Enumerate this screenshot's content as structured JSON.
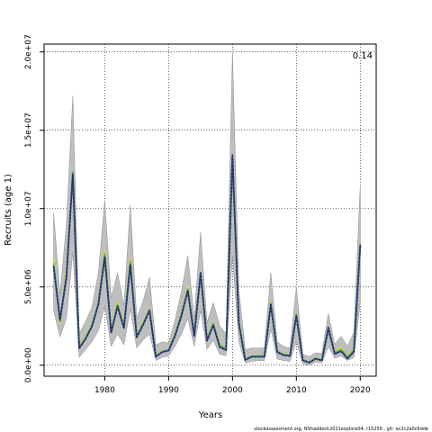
{
  "chart_data": {
    "type": "line",
    "title": "",
    "xlabel": "Years",
    "ylabel": "Recruits (age 1)",
    "corner_label": "0.14",
    "footer": "stockassessment.org, NShaddock2021explore04, r15256 , git: ec2c2a0c6dde",
    "xlim": [
      1970.5,
      2022.5
    ],
    "ylim": [
      -700000,
      20500000
    ],
    "x_ticks": [
      1980,
      1990,
      2000,
      2010,
      2020
    ],
    "x_tick_labels": [
      "1980",
      "1990",
      "2000",
      "2010",
      "2020"
    ],
    "y_ticks": [
      0,
      5000000,
      10000000,
      15000000,
      20000000
    ],
    "y_tick_labels": [
      "0.0e+00",
      "5.0e+06",
      "1.0e+07",
      "1.5e+07",
      "2.0e+07"
    ],
    "grid": true,
    "grid_style": "dotted",
    "x": [
      1972,
      1973,
      1974,
      1975,
      1976,
      1977,
      1978,
      1979,
      1980,
      1981,
      1982,
      1983,
      1984,
      1985,
      1986,
      1987,
      1988,
      1989,
      1990,
      1991,
      1992,
      1993,
      1994,
      1995,
      1996,
      1997,
      1998,
      1999,
      2000,
      2001,
      2002,
      2003,
      2004,
      2005,
      2006,
      2007,
      2008,
      2009,
      2010,
      2011,
      2012,
      2013,
      2014,
      2015,
      2016,
      2017,
      2018,
      2019,
      2020
    ],
    "band_upper": [
      9700000,
      4500000,
      9000000,
      17200000,
      2000000,
      2800000,
      3700000,
      5900000,
      10500000,
      4300000,
      5900000,
      3800000,
      10200000,
      3000000,
      4100000,
      5600000,
      1300000,
      1500000,
      1400000,
      2900000,
      4700000,
      7000000,
      3000000,
      8500000,
      2700000,
      4000000,
      2500000,
      2000000,
      20000000,
      4800000,
      1000000,
      1100000,
      1100000,
      1100000,
      5900000,
      1500000,
      1200000,
      1100000,
      5000000,
      700000,
      550000,
      800000,
      750000,
      3300000,
      1350000,
      1850000,
      1200000,
      2100000,
      11500000
    ],
    "band_lower": [
      3500000,
      1800000,
      3000000,
      7200000,
      500000,
      1000000,
      1500000,
      2200000,
      3800000,
      1200000,
      2000000,
      1300000,
      3600000,
      1100000,
      1600000,
      2000000,
      300000,
      500000,
      600000,
      1200000,
      2000000,
      3000000,
      1200000,
      3500000,
      1000000,
      1600000,
      700000,
      600000,
      7000000,
      1500000,
      150000,
      250000,
      300000,
      300000,
      2300000,
      400000,
      300000,
      250000,
      1500000,
      100000,
      0,
      200000,
      150000,
      1200000,
      450000,
      600000,
      300000,
      500000,
      4000000
    ],
    "series": [
      {
        "color": "#e6e61a",
        "values": [
          6700000,
          2700000,
          6000000,
          12000000,
          1200000,
          1800000,
          2600000,
          4000000,
          7300000,
          2200000,
          4000000,
          2500000,
          6800000,
          1900000,
          2700000,
          3600000,
          600000,
          900000,
          1000000,
          2000000,
          3300000,
          5000000,
          2000000,
          5600000,
          1700000,
          2700000,
          1300000,
          1100000,
          12700000,
          2800000,
          400000,
          600000,
          600000,
          600000,
          4000000,
          900000,
          700000,
          650000,
          3200000,
          350000,
          200000,
          450000,
          350000,
          2200000,
          800000,
          1100000,
          550000,
          1000000,
          7500000
        ]
      },
      {
        "color": "#b5d11f",
        "values": [
          6600000,
          2750000,
          5900000,
          12100000,
          1200000,
          1800000,
          2600000,
          4000000,
          7200000,
          2200000,
          3900000,
          2500000,
          6700000,
          1900000,
          2700000,
          3600000,
          600000,
          900000,
          1000000,
          2000000,
          3300000,
          4900000,
          2000000,
          5700000,
          1700000,
          2700000,
          1300000,
          1100000,
          12900000,
          2800000,
          400000,
          600000,
          600000,
          600000,
          4000000,
          900000,
          700000,
          650000,
          3300000,
          350000,
          200000,
          450000,
          350000,
          2200000,
          800000,
          1050000,
          550000,
          1000000,
          7600000
        ]
      },
      {
        "color": "#7ac142",
        "values": [
          6500000,
          2800000,
          5800000,
          12200000,
          1150000,
          1750000,
          2550000,
          3950000,
          7100000,
          2150000,
          3850000,
          2450000,
          6600000,
          1850000,
          2650000,
          3550000,
          580000,
          880000,
          980000,
          1950000,
          3250000,
          4850000,
          1950000,
          5750000,
          1650000,
          2650000,
          1250000,
          1050000,
          13000000,
          2750000,
          380000,
          580000,
          580000,
          580000,
          3950000,
          880000,
          680000,
          630000,
          3250000,
          340000,
          190000,
          440000,
          340000,
          2250000,
          780000,
          1000000,
          500000,
          950000,
          7600000
        ]
      },
      {
        "color": "#3e8e5a",
        "values": [
          6400000,
          2850000,
          5700000,
          12300000,
          1100000,
          1700000,
          2500000,
          3900000,
          7000000,
          2100000,
          3800000,
          2400000,
          6500000,
          1800000,
          2600000,
          3500000,
          560000,
          860000,
          960000,
          1900000,
          3200000,
          4800000,
          1900000,
          5800000,
          1600000,
          2600000,
          1200000,
          1000000,
          13100000,
          2700000,
          360000,
          560000,
          560000,
          560000,
          3900000,
          860000,
          660000,
          610000,
          3200000,
          330000,
          180000,
          430000,
          330000,
          2300000,
          760000,
          950000,
          470000,
          900000,
          7650000
        ]
      },
      {
        "color": "#2aa8b8",
        "values": [
          6350000,
          2850000,
          5650000,
          12250000,
          1100000,
          1700000,
          2500000,
          3900000,
          6950000,
          2100000,
          3780000,
          2400000,
          6450000,
          1800000,
          2600000,
          3500000,
          550000,
          850000,
          950000,
          1900000,
          3180000,
          4780000,
          1880000,
          5850000,
          1580000,
          2580000,
          1180000,
          980000,
          13300000,
          2680000,
          350000,
          550000,
          550000,
          550000,
          3880000,
          850000,
          650000,
          600000,
          3180000,
          320000,
          180000,
          420000,
          320000,
          2350000,
          740000,
          920000,
          450000,
          870000,
          7650000
        ]
      },
      {
        "color": "#3b4aa0",
        "values": [
          6300000,
          2900000,
          5600000,
          12200000,
          1080000,
          1680000,
          2480000,
          3880000,
          6900000,
          2080000,
          3760000,
          2380000,
          6400000,
          1780000,
          2580000,
          3480000,
          540000,
          840000,
          940000,
          1880000,
          3160000,
          4760000,
          1860000,
          5900000,
          1560000,
          2560000,
          1160000,
          960000,
          13400000,
          2660000,
          340000,
          540000,
          540000,
          540000,
          3860000,
          840000,
          640000,
          590000,
          3160000,
          310000,
          170000,
          410000,
          310000,
          2400000,
          720000,
          900000,
          420000,
          850000,
          7700000
        ]
      },
      {
        "color": "#222222",
        "values": [
          6300000,
          2900000,
          5600000,
          12200000,
          1080000,
          1680000,
          2480000,
          3880000,
          6900000,
          2080000,
          3760000,
          2380000,
          6400000,
          1780000,
          2580000,
          3480000,
          540000,
          840000,
          940000,
          1880000,
          3160000,
          4760000,
          1860000,
          5900000,
          1560000,
          2560000,
          1160000,
          960000,
          13500000,
          2660000,
          340000,
          540000,
          540000,
          540000,
          3860000,
          840000,
          640000,
          590000,
          3160000,
          310000,
          170000,
          410000,
          310000,
          2400000,
          720000,
          900000,
          420000,
          850000,
          7750000
        ]
      }
    ]
  }
}
